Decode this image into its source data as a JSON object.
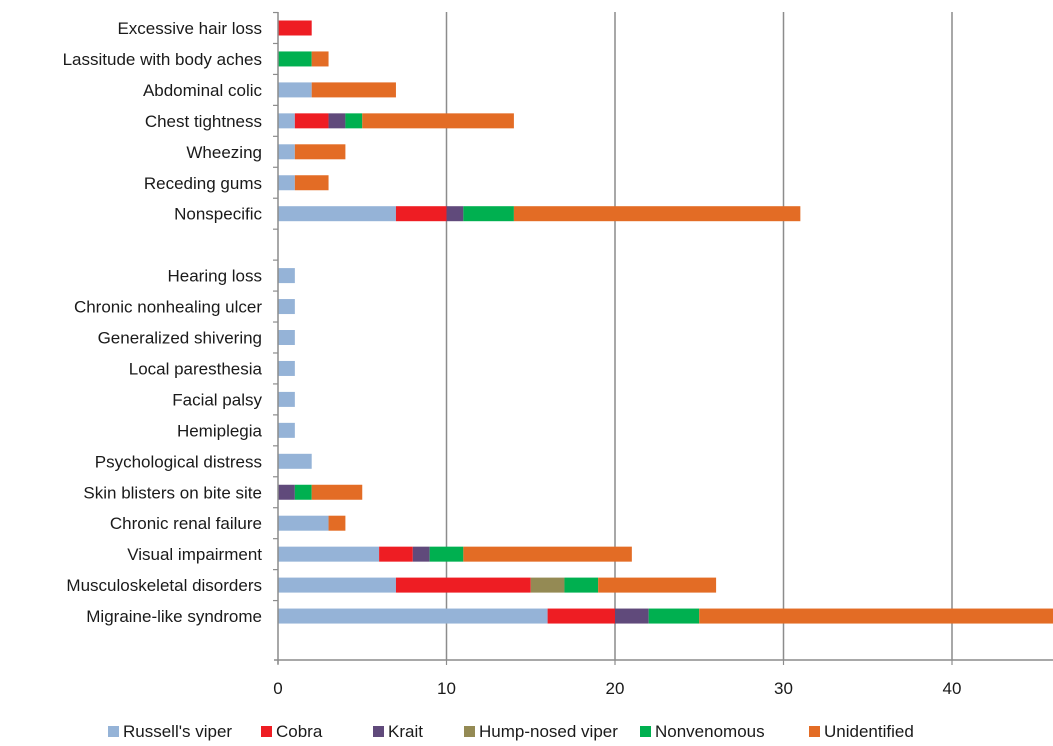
{
  "chart_data": {
    "type": "bar",
    "orientation": "horizontal",
    "stacked": true,
    "categories": [
      "Excessive hair loss",
      "Lassitude with body aches",
      "Abdominal colic",
      "Chest tightness",
      "Wheezing",
      "Receding gums",
      "Nonspecific",
      "",
      "Hearing loss",
      "Chronic nonhealing ulcer",
      "Generalized shivering",
      "Local paresthesia",
      "Facial palsy",
      "Hemiplegia",
      "Psychological distress",
      "Skin blisters on bite site",
      "Chronic renal failure",
      "Visual impairment",
      "Musculoskeletal disorders",
      "Migraine-like syndrome"
    ],
    "series": [
      {
        "name": "Russell's viper",
        "color": "#95b3d7",
        "values": [
          0,
          0,
          2,
          1,
          1,
          1,
          7,
          0,
          1,
          1,
          1,
          1,
          1,
          1,
          2,
          0,
          3,
          6,
          7,
          16
        ]
      },
      {
        "name": "Cobra",
        "color": "#ee1d23",
        "values": [
          2,
          0,
          0,
          2,
          0,
          0,
          3,
          0,
          0,
          0,
          0,
          0,
          0,
          0,
          0,
          0,
          0,
          2,
          8,
          4
        ]
      },
      {
        "name": "Krait",
        "color": "#604a7b",
        "values": [
          0,
          0,
          0,
          1,
          0,
          0,
          1,
          0,
          0,
          0,
          0,
          0,
          0,
          0,
          0,
          1,
          0,
          1,
          0,
          2
        ]
      },
      {
        "name": "Hump-nosed viper",
        "color": "#948a54",
        "values": [
          0,
          0,
          0,
          0,
          0,
          0,
          0,
          0,
          0,
          0,
          0,
          0,
          0,
          0,
          0,
          0,
          0,
          0,
          2,
          0
        ]
      },
      {
        "name": "Nonvenomous",
        "color": "#00b050",
        "values": [
          0,
          2,
          0,
          1,
          0,
          0,
          3,
          0,
          0,
          0,
          0,
          0,
          0,
          0,
          0,
          1,
          0,
          2,
          2,
          3
        ]
      },
      {
        "name": "Unidentified",
        "color": "#e36c25",
        "values": [
          0,
          1,
          5,
          9,
          3,
          2,
          17,
          0,
          0,
          0,
          0,
          0,
          0,
          0,
          0,
          3,
          1,
          10,
          7,
          21
        ]
      }
    ],
    "xlim": [
      0,
      46
    ],
    "xticks": [
      0,
      10,
      20,
      30,
      40
    ],
    "grid": "vertical major gridlines",
    "legend": "bottom",
    "title": "",
    "xlabel": "",
    "ylabel": ""
  }
}
